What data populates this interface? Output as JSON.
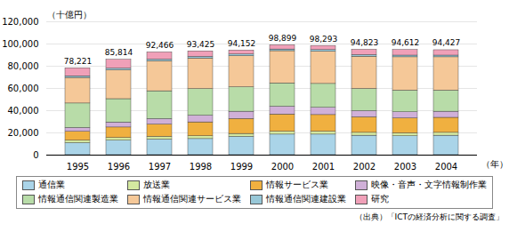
{
  "chart_data": {
    "type": "bar",
    "stacked": true,
    "categories": [
      "1995",
      "1996",
      "1997",
      "1998",
      "1999",
      "2000",
      "2001",
      "2002",
      "2003",
      "2004"
    ],
    "series": [
      {
        "name": "通信業",
        "color": "#aad4e8",
        "values": [
          10800,
          13000,
          14000,
          14500,
          16500,
          18500,
          18500,
          17500,
          17000,
          17500
        ]
      },
      {
        "name": "放送業",
        "color": "#d4e8a0",
        "values": [
          2200,
          2400,
          2500,
          2500,
          2600,
          2600,
          2600,
          2600,
          2600,
          2600
        ]
      },
      {
        "name": "情報サービス業",
        "color": "#f0b040",
        "values": [
          8000,
          9500,
          11000,
          12500,
          13500,
          15500,
          15000,
          14000,
          13500,
          13500
        ]
      },
      {
        "name": "映像・音声・文字情報制作業",
        "color": "#d0b0d8",
        "values": [
          3500,
          4500,
          5000,
          6000,
          6500,
          7000,
          6500,
          5500,
          5500,
          5500
        ]
      },
      {
        "name": "情報通信関連製造業",
        "color": "#b8dca8",
        "values": [
          22000,
          21000,
          25000,
          24000,
          22000,
          21000,
          21500,
          20000,
          19500,
          19000
        ]
      },
      {
        "name": "情報通信関連サービス業",
        "color": "#f5c898",
        "values": [
          23000,
          26000,
          27000,
          27500,
          28000,
          29000,
          29000,
          29000,
          30000,
          30000
        ]
      },
      {
        "name": "情報通信関連建設業",
        "color": "#98c8d8",
        "values": [
          1500,
          1500,
          1500,
          1500,
          1500,
          1500,
          1500,
          1500,
          1500,
          1500
        ]
      },
      {
        "name": "研究",
        "color": "#f0a0b8",
        "values": [
          7221,
          7914,
          6466,
          4925,
          3552,
          3799,
          3693,
          4723,
          5012,
          4827
        ]
      }
    ],
    "totals": [
      78221,
      85814,
      92466,
      93425,
      94152,
      98899,
      98293,
      94823,
      94612,
      94427
    ],
    "total_labels": [
      "78,221",
      "85,814",
      "92,466",
      "93,425",
      "94,152",
      "98,899",
      "98,293",
      "94,823",
      "94,612",
      "94,427"
    ],
    "ylabel": "（十億円）",
    "xlabel": "（年）",
    "source": "（出典）「ICTの経済分析に関する調査」",
    "ylim": [
      0,
      120000
    ],
    "yticks": [
      0,
      {
        "value": 20000,
        "label": "20,000"
      },
      {
        "value": 40000,
        "label": "40,000"
      },
      {
        "value": 60000,
        "label": "60,000"
      },
      {
        "value": 80000,
        "label": "80,000"
      },
      {
        "value": 100000,
        "label": "100,000"
      },
      {
        "value": 120000,
        "label": "120,000"
      }
    ],
    "grid": true,
    "legend": "bottom"
  }
}
